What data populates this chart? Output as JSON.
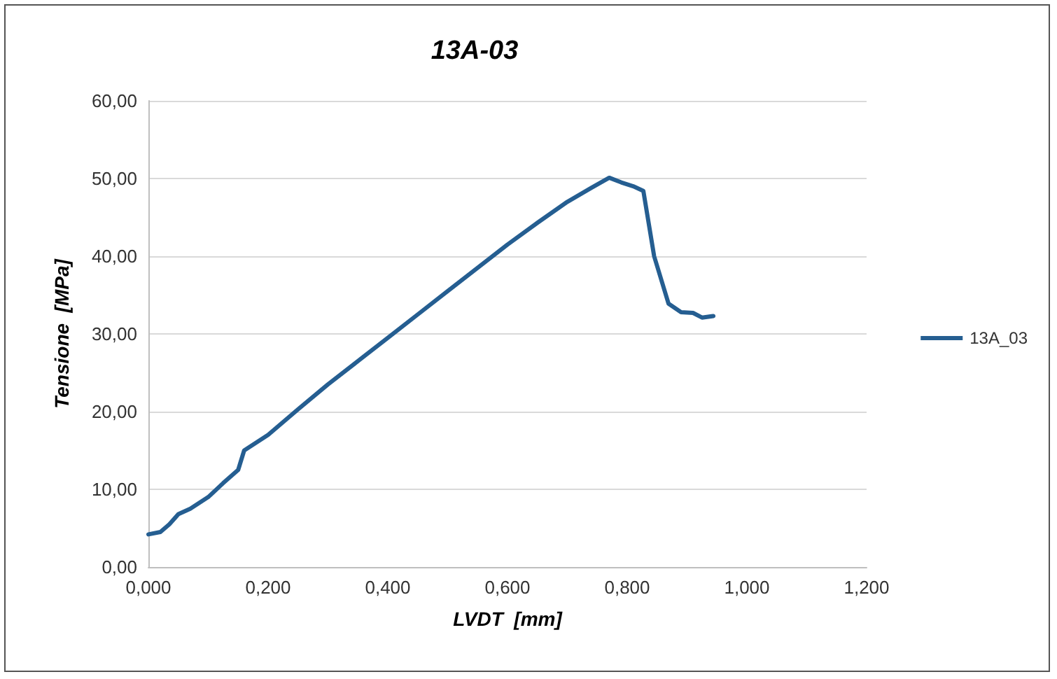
{
  "chart_data": {
    "type": "line",
    "title": "13A-03",
    "xlabel": "LVDT  [mm]",
    "ylabel": "Tensione  [MPa]",
    "xlim": [
      0,
      1.2
    ],
    "xticks": [
      {
        "value": 0,
        "label": "0,000"
      },
      {
        "value": 0.2,
        "label": "0,200"
      },
      {
        "value": 0.4,
        "label": "0,400"
      },
      {
        "value": 0.6,
        "label": "0,600"
      },
      {
        "value": 0.8,
        "label": "0,800"
      },
      {
        "value": 1.0,
        "label": "1,000"
      },
      {
        "value": 1.2,
        "label": "1,200"
      }
    ],
    "ylim": [
      0,
      60
    ],
    "yticks": [
      {
        "value": 0,
        "label": "0,00"
      },
      {
        "value": 10,
        "label": "10,00"
      },
      {
        "value": 20,
        "label": "20,00"
      },
      {
        "value": 30,
        "label": "30,00"
      },
      {
        "value": 40,
        "label": "40,00"
      },
      {
        "value": 50,
        "label": "50,00"
      },
      {
        "value": 60,
        "label": "60,00"
      }
    ],
    "grid": "y",
    "legend": "right",
    "marker": "none",
    "line_style": "solid",
    "series": [
      {
        "name": "13A_03",
        "color": "#255e91",
        "x": [
          0,
          0.02,
          0.035,
          0.05,
          0.07,
          0.1,
          0.125,
          0.15,
          0.16,
          0.2,
          0.25,
          0.3,
          0.35,
          0.4,
          0.45,
          0.5,
          0.55,
          0.6,
          0.65,
          0.7,
          0.74,
          0.77,
          0.79,
          0.81,
          0.827,
          0.845,
          0.869,
          0.89,
          0.91,
          0.925,
          0.944
        ],
        "values": [
          4.2,
          4.5,
          5.5,
          6.8,
          7.5,
          9.0,
          10.8,
          12.5,
          15.0,
          17.0,
          20.3,
          23.5,
          26.5,
          29.5,
          32.5,
          35.5,
          38.5,
          41.5,
          44.3,
          47.0,
          48.8,
          50.1,
          49.5,
          49.0,
          48.4,
          40.0,
          33.9,
          32.8,
          32.7,
          32.1,
          32.3
        ]
      }
    ]
  }
}
